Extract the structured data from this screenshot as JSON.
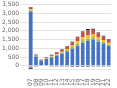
{
  "chart_data": {
    "type": "bar",
    "stacked": true,
    "grid": true,
    "categories": [
      "07",
      "08",
      "09",
      "10",
      "11",
      "12",
      "13",
      "14",
      "15",
      "16",
      "17",
      "18",
      "19",
      "20",
      "21",
      "22"
    ],
    "series": [
      {
        "color": "#4472c4",
        "values": [
          3100,
          530,
          310,
          390,
          480,
          590,
          700,
          820,
          980,
          1150,
          1300,
          1420,
          1500,
          1380,
          1280,
          1150
        ]
      },
      {
        "color": "#9bbb59",
        "values": [
          80,
          30,
          20,
          30,
          40,
          50,
          60,
          80,
          100,
          130,
          160,
          150,
          140,
          120,
          100,
          90
        ]
      },
      {
        "color": "#ffc000",
        "values": [
          60,
          20,
          15,
          20,
          30,
          40,
          50,
          70,
          90,
          120,
          160,
          170,
          150,
          120,
          100,
          80
        ]
      },
      {
        "color": "#c0504d",
        "values": [
          100,
          50,
          30,
          40,
          60,
          80,
          100,
          130,
          170,
          220,
          280,
          310,
          280,
          240,
          200,
          170
        ]
      },
      {
        "color": "#1a1a1a",
        "values": [
          30,
          15,
          10,
          15,
          20,
          25,
          30,
          35,
          40,
          50,
          60,
          55,
          50,
          45,
          40,
          35
        ]
      },
      {
        "color": "#969696",
        "values": [
          -120,
          -25,
          -15,
          -18,
          -22,
          -28,
          -32,
          -35,
          -38,
          -40,
          -42,
          -40,
          -38,
          -35,
          -32,
          -30
        ]
      },
      {
        "color": "#1a1a1a",
        "values": [
          -40,
          -10,
          -8,
          -10,
          -12,
          -15,
          -18,
          -18,
          -20,
          -20,
          -22,
          -20,
          -18,
          -18,
          -15,
          -15
        ]
      }
    ],
    "ylim": [
      -200,
      3500
    ],
    "yticks": [
      0,
      500,
      {
        "value": 1000,
        "label": "1,000"
      },
      {
        "value": 1500,
        "label": "1,500"
      },
      {
        "value": 2000,
        "label": "2,000"
      },
      {
        "value": 2500,
        "label": "2,500"
      },
      {
        "value": 3000,
        "label": "3,000"
      },
      {
        "value": 3500,
        "label": "3,500"
      }
    ]
  }
}
